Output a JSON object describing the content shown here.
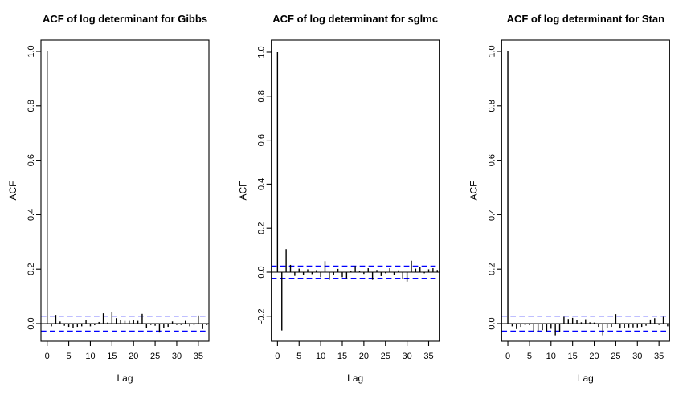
{
  "figure": {
    "background": "#FFFFFF",
    "colors": {
      "series": "#000000",
      "ci_line": "#0000FF",
      "axis": "#000000",
      "text": "#000000"
    }
  },
  "chart_data": [
    {
      "type": "bar",
      "subtype": "acf",
      "title": "ACF of log determinant for Gibbs",
      "xlabel": "Lag",
      "ylabel": "ACF",
      "lags": [
        0,
        1,
        2,
        3,
        4,
        5,
        6,
        7,
        8,
        9,
        10,
        11,
        12,
        13,
        14,
        15,
        16,
        17,
        18,
        19,
        20,
        21,
        22,
        23,
        24,
        25,
        26,
        27,
        28,
        29,
        30,
        31,
        32,
        33,
        34,
        35,
        36,
        37
      ],
      "values": [
        1.0,
        -0.01,
        0.032,
        0.008,
        -0.008,
        -0.012,
        -0.016,
        -0.012,
        -0.01,
        0.012,
        -0.01,
        -0.006,
        0.006,
        0.038,
        0.004,
        0.042,
        0.02,
        0.012,
        0.01,
        0.01,
        0.012,
        0.01,
        0.036,
        -0.015,
        -0.005,
        -0.008,
        -0.033,
        -0.015,
        -0.012,
        0.008,
        -0.005,
        -0.005,
        0.01,
        -0.01,
        -0.005,
        0.03,
        -0.02,
        -0.005
      ],
      "ci": 0.0277,
      "yticks": [
        0,
        0.2,
        0.4,
        0.6,
        0.8,
        1
      ],
      "ytick_labels": [
        "0.0",
        "0.2",
        "0.4",
        "0.6",
        "0.8",
        "1.0"
      ],
      "xticks": [
        0,
        5,
        10,
        15,
        20,
        25,
        30,
        35
      ],
      "xtick_labels": [
        "0",
        "5",
        "10",
        "15",
        "20",
        "25",
        "30",
        "35"
      ],
      "ylim": [
        -0.0649,
        1.0413
      ],
      "xlim": [
        -1.433,
        37.45
      ],
      "grid": false,
      "legend": null
    },
    {
      "type": "bar",
      "subtype": "acf",
      "title": "ACF of log determinant for sglmc",
      "xlabel": "Lag",
      "ylabel": "ACF",
      "lags": [
        0,
        1,
        2,
        3,
        4,
        5,
        6,
        7,
        8,
        9,
        10,
        11,
        12,
        13,
        14,
        15,
        16,
        17,
        18,
        19,
        20,
        21,
        22,
        23,
        24,
        25,
        26,
        27,
        28,
        29,
        30,
        31,
        32,
        33,
        34,
        35,
        36,
        37
      ],
      "values": [
        1.0,
        -0.265,
        0.105,
        0.033,
        -0.017,
        0.016,
        -0.011,
        0.013,
        -0.009,
        0.009,
        -0.023,
        0.05,
        -0.035,
        -0.011,
        0.015,
        -0.023,
        -0.028,
        0.004,
        0.028,
        0.007,
        -0.008,
        0.018,
        -0.035,
        0.01,
        -0.018,
        -0.005,
        0.018,
        -0.012,
        0.008,
        -0.033,
        -0.043,
        0.052,
        0.016,
        0.023,
        -0.005,
        0.013,
        0.018,
        0.01
      ],
      "ci": 0.0277,
      "yticks": [
        -0.2,
        0,
        0.2,
        0.4,
        0.6,
        0.8,
        1
      ],
      "ytick_labels": [
        "-0.2",
        "0.0",
        "0.2",
        "0.4",
        "0.6",
        "0.8",
        "1.0"
      ],
      "xticks": [
        0,
        5,
        10,
        15,
        20,
        25,
        30,
        35
      ],
      "xtick_labels": [
        "0",
        "5",
        "10",
        "15",
        "20",
        "25",
        "30",
        "35"
      ],
      "ylim": [
        -0.3139,
        1.0547
      ],
      "xlim": [
        -1.433,
        37.45
      ],
      "grid": false,
      "legend": null
    },
    {
      "type": "bar",
      "subtype": "acf",
      "title": "ACF of log determinant for Stan",
      "xlabel": "Lag",
      "ylabel": "ACF",
      "lags": [
        0,
        1,
        2,
        3,
        4,
        5,
        6,
        7,
        8,
        9,
        10,
        11,
        12,
        13,
        14,
        15,
        16,
        17,
        18,
        19,
        20,
        21,
        22,
        23,
        24,
        25,
        26,
        27,
        28,
        29,
        30,
        31,
        32,
        33,
        34,
        35,
        36,
        37
      ],
      "values": [
        1.0,
        -0.01,
        -0.02,
        -0.012,
        -0.006,
        -0.006,
        -0.028,
        -0.028,
        -0.024,
        -0.028,
        -0.019,
        -0.043,
        -0.031,
        0.025,
        0.017,
        0.021,
        0.012,
        0.005,
        0.016,
        0.005,
        0.004,
        -0.012,
        -0.043,
        -0.016,
        -0.012,
        0.035,
        -0.018,
        -0.016,
        -0.014,
        -0.014,
        -0.014,
        -0.012,
        -0.008,
        0.015,
        0.02,
        -0.005,
        0.025,
        -0.01
      ],
      "ci": 0.0277,
      "yticks": [
        0,
        0.2,
        0.4,
        0.6,
        0.8,
        1
      ],
      "ytick_labels": [
        "0.0",
        "0.2",
        "0.4",
        "0.6",
        "0.8",
        "1.0"
      ],
      "xticks": [
        0,
        5,
        10,
        15,
        20,
        25,
        30,
        35
      ],
      "xtick_labels": [
        "0",
        "5",
        "10",
        "15",
        "20",
        "25",
        "30",
        "35"
      ],
      "ylim": [
        -0.0649,
        1.0413
      ],
      "xlim": [
        -1.433,
        37.45
      ],
      "grid": false,
      "legend": null
    }
  ]
}
